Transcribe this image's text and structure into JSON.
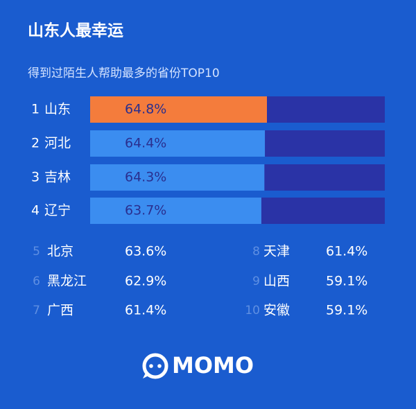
{
  "chart_data": [
    {
      "type": "bar",
      "title": "山东人最幸运",
      "subtitle": "得到过陌生人帮助最多的省份TOP10",
      "ranks": [
        1,
        2,
        3,
        4
      ],
      "categories": [
        "山东",
        "河北",
        "吉林",
        "辽宁"
      ],
      "values": [
        64.8,
        64.4,
        64.3,
        63.7
      ],
      "value_labels": [
        "64.8%",
        "64.4%",
        "64.3%",
        "63.7%"
      ],
      "colors": [
        "#f47c3c",
        "#3b8df0",
        "#3b8df0",
        "#3b8df0"
      ],
      "track_color": "#2a33a6",
      "xlim": [
        30,
        88
      ]
    },
    {
      "type": "list",
      "ranks": [
        5,
        6,
        7,
        8,
        9,
        10
      ],
      "categories": [
        "北京",
        "黑龙江",
        "广西",
        "天津",
        "山西",
        "安徽"
      ],
      "values": [
        63.6,
        62.9,
        61.4,
        61.4,
        59.1,
        59.1
      ],
      "value_labels": [
        "63.6%",
        "62.9%",
        "61.4%",
        "61.4%",
        "59.1%",
        "59.1%"
      ]
    }
  ],
  "logo": "MOMO"
}
